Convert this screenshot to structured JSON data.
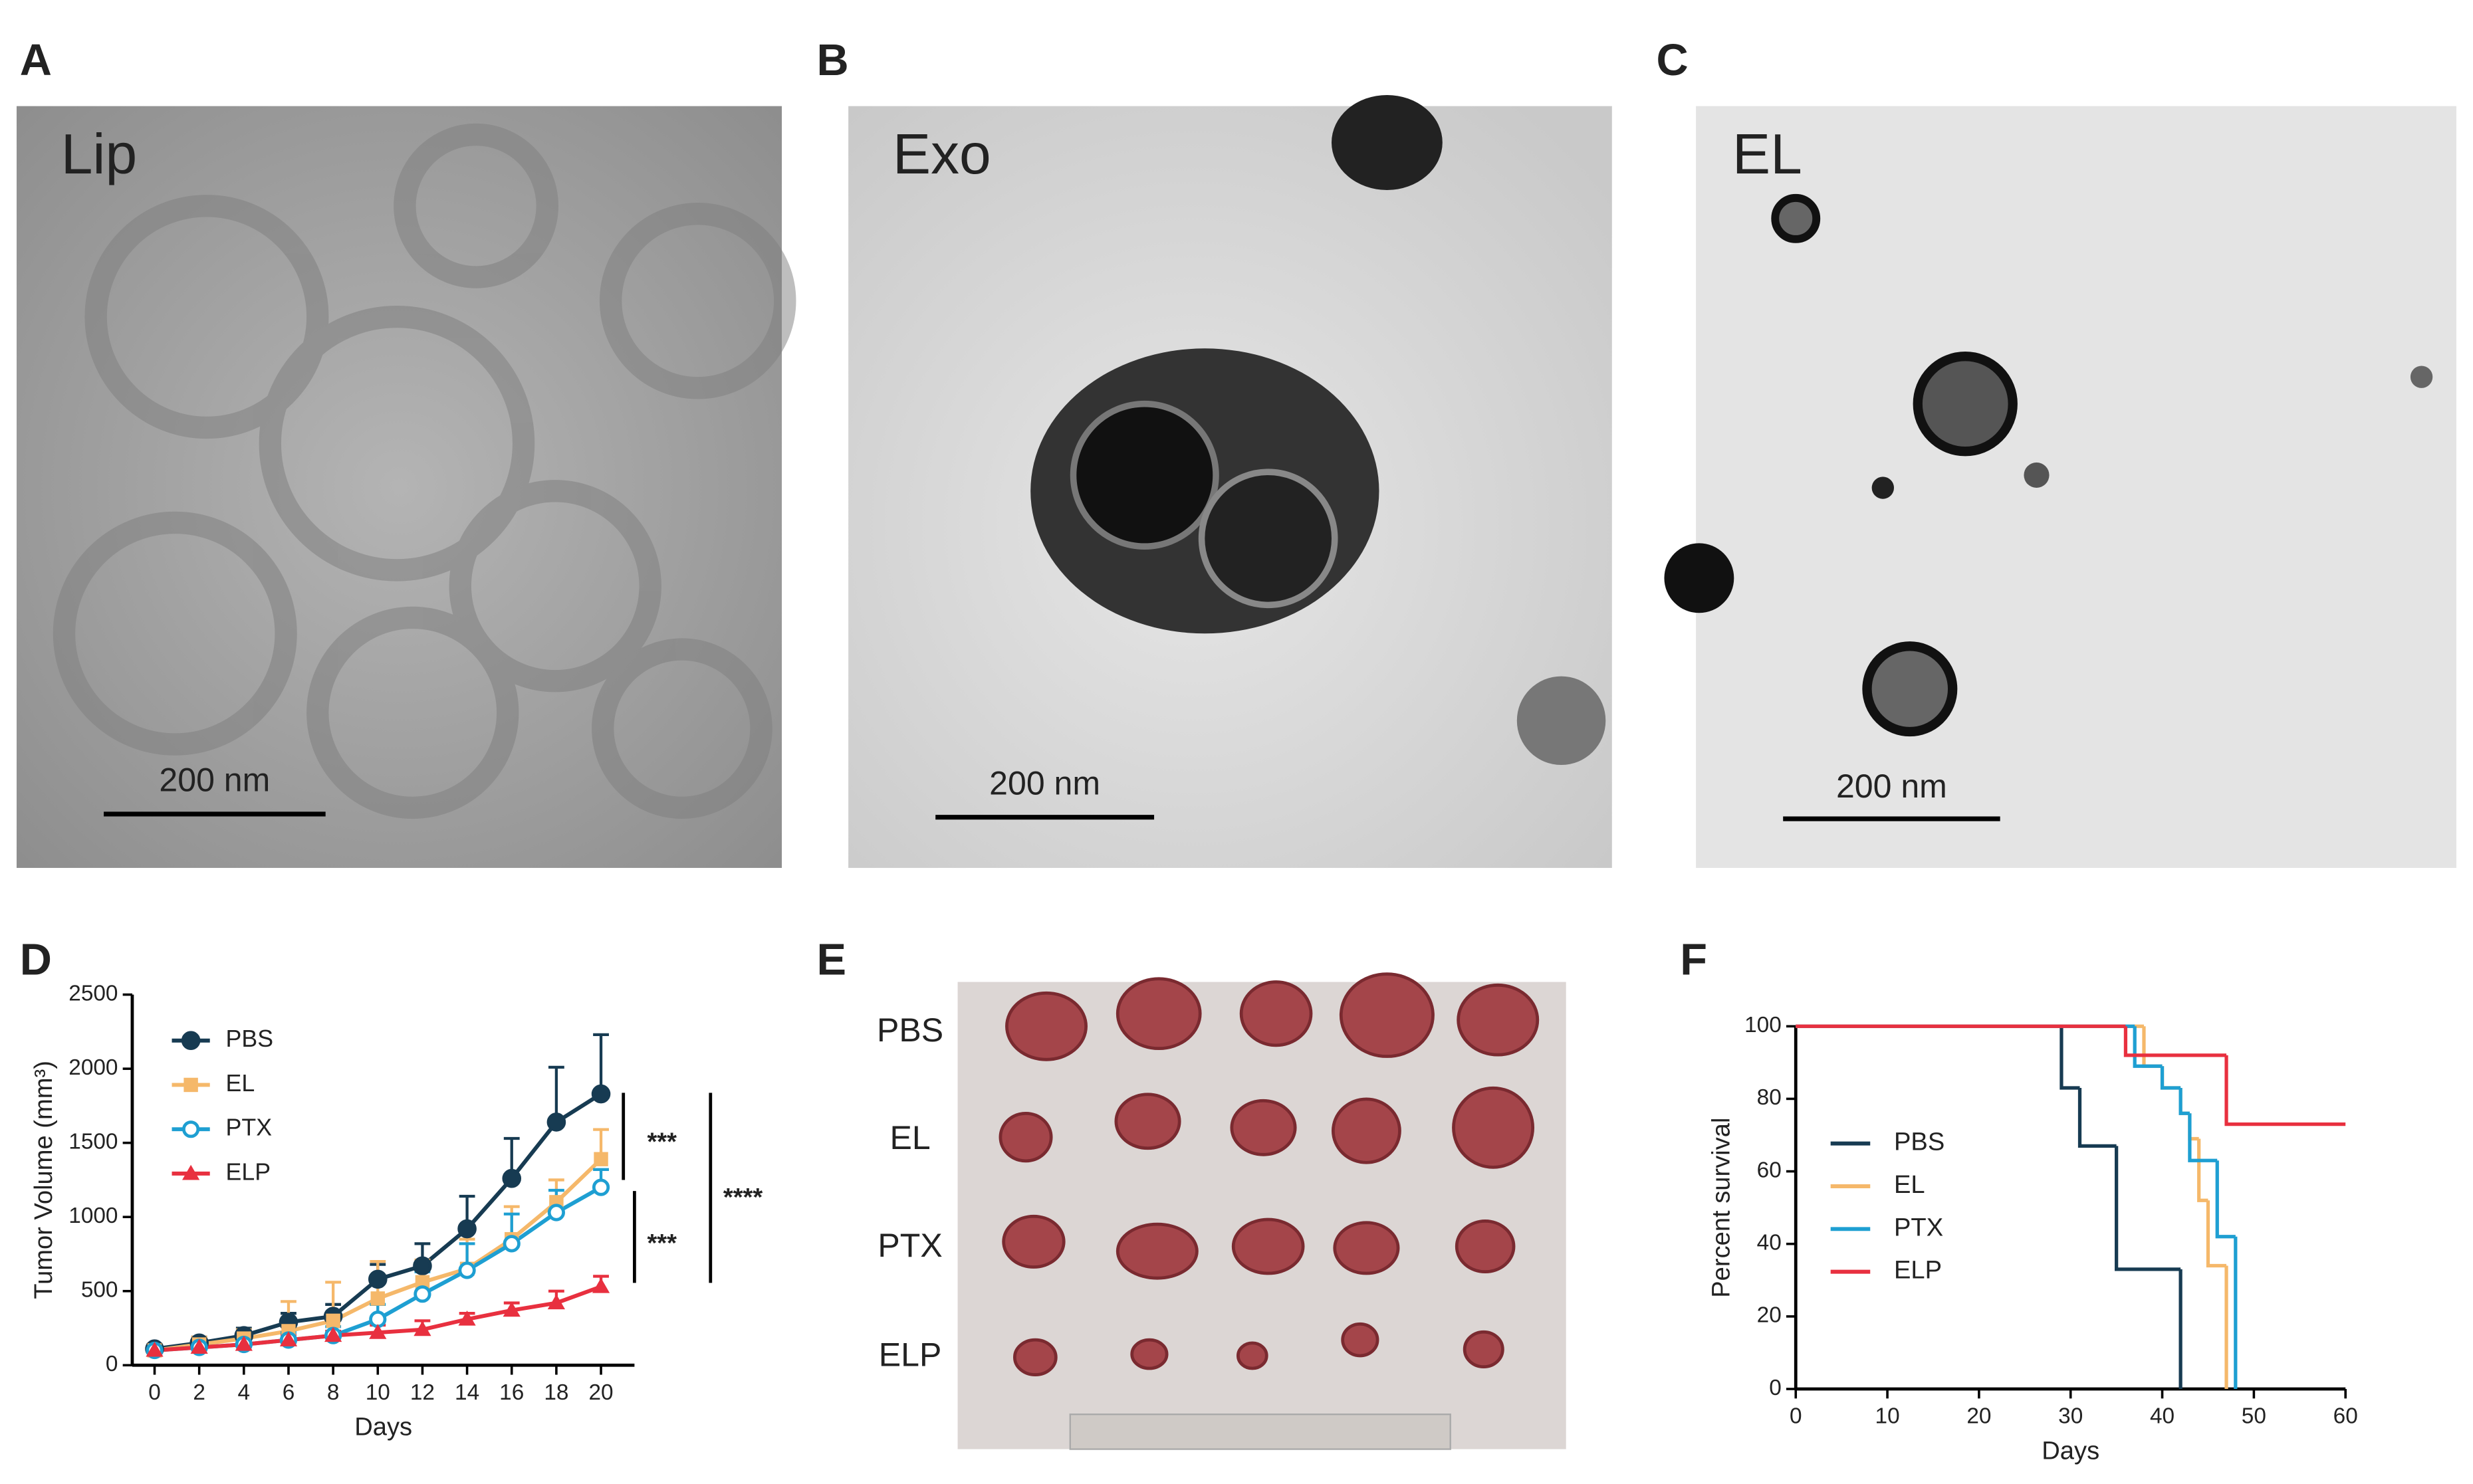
{
  "panel_labels": [
    "A",
    "B",
    "C",
    "D",
    "E",
    "F"
  ],
  "micrographs": [
    {
      "label": "Lip",
      "scale_bar": "200 nm"
    },
    {
      "label": "Exo",
      "scale_bar": "200 nm"
    },
    {
      "label": "EL",
      "scale_bar": "200 nm"
    }
  ],
  "tumor_photo": {
    "rows": [
      "PBS",
      "EL",
      "PTX",
      "ELP"
    ]
  },
  "chart_data": [
    {
      "type": "line",
      "y_label": "Tumor Volume (mm³)",
      "x_label": "Days",
      "x": [
        0,
        2,
        4,
        6,
        8,
        10,
        12,
        14,
        16,
        18,
        20
      ],
      "xlim": [
        -1,
        21.5
      ],
      "xticks": [
        0,
        2,
        4,
        6,
        8,
        10,
        12,
        14,
        16,
        18,
        20
      ],
      "ylim": [
        0,
        2500
      ],
      "yticks": [
        0,
        500,
        1000,
        1500,
        2000,
        2500
      ],
      "series": [
        {
          "name": "PBS",
          "color": "#173b52",
          "marker": "circle",
          "values": [
            110,
            150,
            200,
            290,
            330,
            580,
            670,
            920,
            1260,
            1640,
            1830
          ],
          "errors": [
            30,
            40,
            50,
            60,
            80,
            100,
            150,
            220,
            270,
            370,
            400
          ]
        },
        {
          "name": "EL",
          "color": "#f5b86a",
          "marker": "square",
          "values": [
            100,
            140,
            180,
            230,
            300,
            450,
            560,
            650,
            850,
            1100,
            1390
          ],
          "errors": [
            40,
            50,
            60,
            200,
            260,
            250,
            150,
            200,
            220,
            150,
            200
          ]
        },
        {
          "name": "PTX",
          "color": "#1e9fd2",
          "marker": "open-circle",
          "values": [
            100,
            120,
            140,
            170,
            200,
            310,
            480,
            640,
            820,
            1030,
            1200
          ],
          "errors": [
            20,
            30,
            40,
            50,
            60,
            100,
            150,
            180,
            200,
            150,
            120
          ]
        },
        {
          "name": "ELP",
          "color": "#e8303f",
          "marker": "triangle",
          "values": [
            100,
            120,
            140,
            170,
            200,
            220,
            240,
            310,
            370,
            420,
            530
          ],
          "errors": [
            20,
            20,
            30,
            30,
            30,
            50,
            60,
            40,
            50,
            80,
            70
          ]
        }
      ],
      "annotations": [
        "***",
        "***",
        "****"
      ]
    },
    {
      "type": "step",
      "y_label": "Percent survival",
      "x_label": "Days",
      "xlim": [
        0,
        60
      ],
      "xticks": [
        0,
        10,
        20,
        30,
        40,
        50,
        60
      ],
      "ylim": [
        0,
        100
      ],
      "yticks": [
        0,
        20,
        40,
        60,
        80,
        100
      ],
      "series": [
        {
          "name": "PBS",
          "color": "#173b52",
          "x": [
            0,
            29,
            31,
            35,
            42
          ],
          "values": [
            100,
            83,
            67,
            33,
            0
          ]
        },
        {
          "name": "EL",
          "color": "#f5b86a",
          "x": [
            0,
            38,
            40,
            42,
            43,
            44,
            45,
            47
          ],
          "values": [
            100,
            89,
            83,
            76,
            69,
            52,
            34,
            0
          ]
        },
        {
          "name": "PTX",
          "color": "#1e9fd2",
          "x": [
            0,
            37,
            40,
            42,
            43,
            46,
            48
          ],
          "values": [
            100,
            89,
            83,
            76,
            63,
            42,
            0
          ]
        },
        {
          "name": "ELP",
          "color": "#e8303f",
          "x": [
            0,
            36,
            47,
            60
          ],
          "values": [
            100,
            92,
            73,
            73
          ]
        }
      ]
    }
  ]
}
